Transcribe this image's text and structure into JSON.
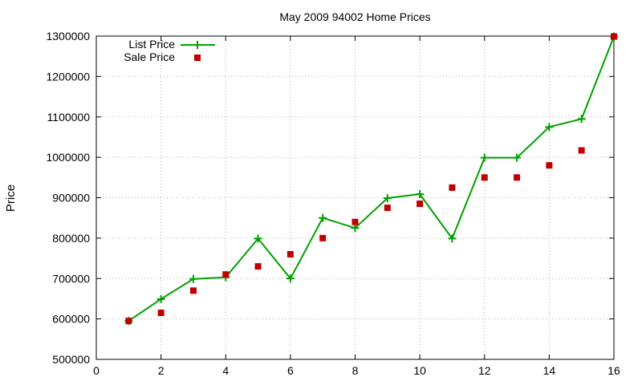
{
  "chart_data": {
    "type": "line",
    "title": "May 2009 94002 Home Prices",
    "xlabel": "",
    "ylabel": "Price",
    "xlim": [
      0,
      16
    ],
    "ylim": [
      500000,
      1300000
    ],
    "x_ticks": [
      0,
      2,
      4,
      6,
      8,
      10,
      12,
      14,
      16
    ],
    "y_ticks": [
      500000,
      600000,
      700000,
      800000,
      900000,
      1000000,
      1100000,
      1200000,
      1300000
    ],
    "grid": true,
    "legend_position": "top-left",
    "series": [
      {
        "name": "List Price",
        "style": "line-with-plus-markers",
        "color": "#00a000",
        "x": [
          1,
          2,
          3,
          4,
          5,
          6,
          7,
          8,
          9,
          10,
          11,
          12,
          13,
          14,
          15,
          16
        ],
        "values": [
          595000,
          649000,
          699000,
          703000,
          799000,
          700000,
          850000,
          825000,
          899000,
          909000,
          799000,
          999000,
          999000,
          1075000,
          1095000,
          1299000
        ]
      },
      {
        "name": "Sale Price",
        "style": "square-points",
        "color": "#c00000",
        "x": [
          1,
          2,
          3,
          4,
          5,
          6,
          7,
          8,
          9,
          10,
          11,
          12,
          13,
          14,
          15,
          16
        ],
        "values": [
          595000,
          615000,
          670000,
          710000,
          730000,
          760000,
          800000,
          840000,
          875000,
          885000,
          925000,
          950000,
          950000,
          980000,
          1017000,
          1299000
        ]
      }
    ]
  }
}
